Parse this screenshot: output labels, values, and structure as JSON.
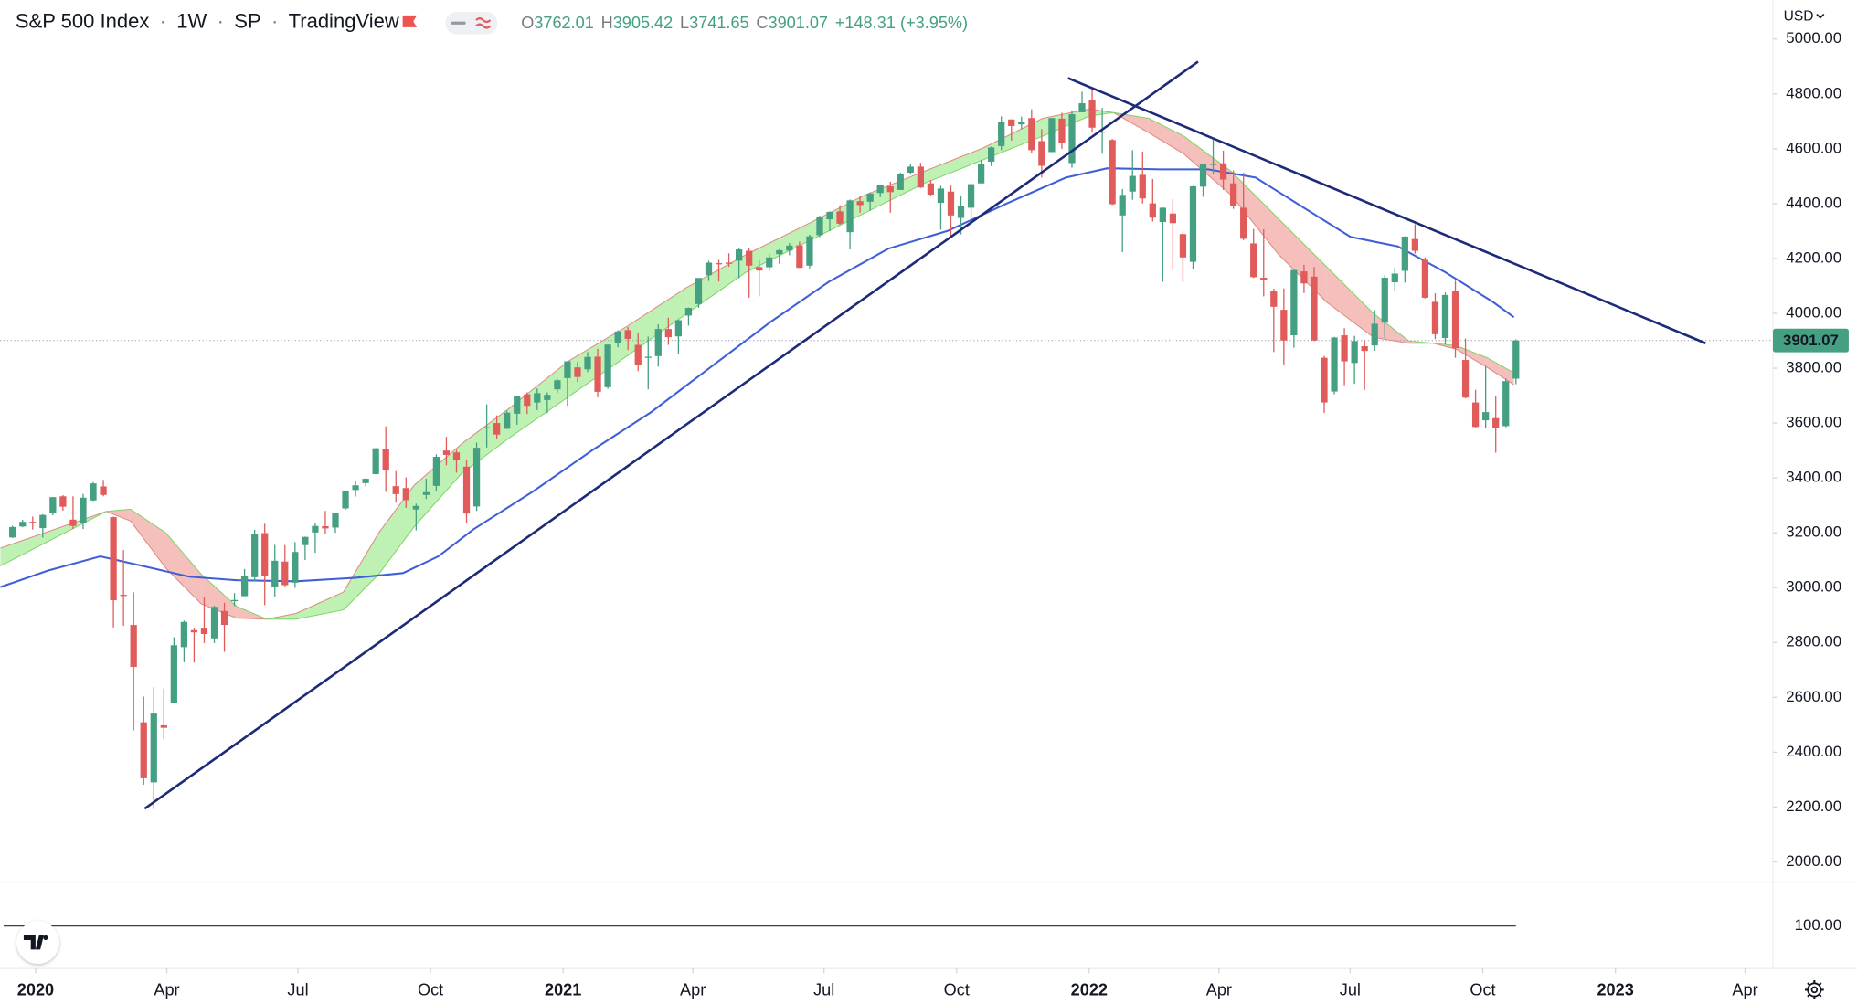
{
  "chart_data": {
    "type": "candlestick",
    "title": "S&P 500 Index",
    "interval": "1W",
    "exchange": "SP",
    "source": "TradingView",
    "separator": "·",
    "currency": "USD",
    "ohlc_labels": [
      "O",
      "H",
      "L",
      "C"
    ],
    "change": "+148.31",
    "change_pct": "(+3.95%)",
    "up_color": "#45a083",
    "down_color": "#e15b5b",
    "grid": false,
    "xlim": [
      -1.24,
      174.47
    ],
    "ylim": [
      1926.7,
      5142.4
    ],
    "yticks": [
      {
        "value": 2000,
        "label": "2000.00"
      },
      {
        "value": 2200,
        "label": "2200.00"
      },
      {
        "value": 2400,
        "label": "2400.00"
      },
      {
        "value": 2600,
        "label": "2600.00"
      },
      {
        "value": 2800,
        "label": "2800.00"
      },
      {
        "value": 3000,
        "label": "3000.00"
      },
      {
        "value": 3200,
        "label": "3200.00"
      },
      {
        "value": 3400,
        "label": "3400.00"
      },
      {
        "value": 3600,
        "label": "3600.00"
      },
      {
        "value": 3800,
        "label": "3800.00"
      },
      {
        "value": 4000,
        "label": "4000.00"
      },
      {
        "value": 4200,
        "label": "4200.00"
      },
      {
        "value": 4400,
        "label": "4400.00"
      },
      {
        "value": 4600,
        "label": "4600.00"
      },
      {
        "value": 4800,
        "label": "4800.00"
      },
      {
        "value": 5000,
        "label": "5000.00"
      }
    ],
    "xticks": [
      {
        "value": 2.29,
        "label": "2020"
      },
      {
        "value": 15.29,
        "label": "Apr"
      },
      {
        "value": 28.29,
        "label": "Jul"
      },
      {
        "value": 41.43,
        "label": "Oct"
      },
      {
        "value": 54.57,
        "label": "2021"
      },
      {
        "value": 67.43,
        "label": "Apr"
      },
      {
        "value": 80.43,
        "label": "Jul"
      },
      {
        "value": 93.57,
        "label": "Oct"
      },
      {
        "value": 106.71,
        "label": "2022"
      },
      {
        "value": 119.57,
        "label": "Apr"
      },
      {
        "value": 132.57,
        "label": "Jul"
      },
      {
        "value": 145.71,
        "label": "Oct"
      },
      {
        "value": 158.86,
        "label": "2023"
      },
      {
        "value": 171.71,
        "label": "Apr"
      }
    ],
    "ohlc": [
      [
        3183,
        3226,
        3181,
        3221
      ],
      [
        3223,
        3247,
        3220,
        3240
      ],
      [
        3240,
        3259,
        3212,
        3235
      ],
      [
        3217,
        3268,
        3182,
        3265
      ],
      [
        3271,
        3330,
        3264,
        3330
      ],
      [
        3333,
        3337,
        3281,
        3295
      ],
      [
        3248,
        3333,
        3214,
        3225
      ],
      [
        3235,
        3342,
        3214,
        3328
      ],
      [
        3318,
        3385,
        3316,
        3380
      ],
      [
        3369,
        3393,
        3333,
        3338
      ],
      [
        3257,
        3259,
        2855,
        2954
      ],
      [
        2974,
        3137,
        2861,
        2972
      ],
      [
        2864,
        2983,
        2479,
        2711
      ],
      [
        2509,
        2603,
        2281,
        2305
      ],
      [
        2290,
        2637,
        2192,
        2541
      ],
      [
        2498,
        2632,
        2447,
        2489
      ],
      [
        2579,
        2819,
        2579,
        2790
      ],
      [
        2783,
        2880,
        2728,
        2875
      ],
      [
        2845,
        2854,
        2727,
        2837
      ],
      [
        2854,
        2964,
        2798,
        2831
      ],
      [
        2815,
        2934,
        2798,
        2930
      ],
      [
        2915,
        2945,
        2766,
        2864
      ],
      [
        2953,
        2980,
        2933,
        2955
      ],
      [
        2969,
        3068,
        2969,
        3044
      ],
      [
        3038,
        3211,
        3025,
        3194
      ],
      [
        3199,
        3233,
        2936,
        3041
      ],
      [
        3001,
        3156,
        2966,
        3098
      ],
      [
        3095,
        3155,
        3005,
        3009
      ],
      [
        3018,
        3166,
        2999,
        3130
      ],
      [
        3155,
        3186,
        3101,
        3185
      ],
      [
        3201,
        3234,
        3127,
        3225
      ],
      [
        3224,
        3280,
        3196,
        3216
      ],
      [
        3219,
        3272,
        3200,
        3271
      ],
      [
        3289,
        3352,
        3284,
        3351
      ],
      [
        3356,
        3387,
        3332,
        3373
      ],
      [
        3381,
        3399,
        3369,
        3397
      ],
      [
        3414,
        3509,
        3413,
        3508
      ],
      [
        3507,
        3588,
        3349,
        3427
      ],
      [
        3370,
        3425,
        3310,
        3341
      ],
      [
        3363,
        3402,
        3291,
        3319
      ],
      [
        3285,
        3306,
        3209,
        3298
      ],
      [
        3338,
        3397,
        3323,
        3348
      ],
      [
        3371,
        3486,
        3354,
        3477
      ],
      [
        3500,
        3550,
        3446,
        3484
      ],
      [
        3493,
        3502,
        3419,
        3465
      ],
      [
        3441,
        3465,
        3234,
        3270
      ],
      [
        3296,
        3529,
        3280,
        3510
      ],
      [
        3584,
        3668,
        3511,
        3585
      ],
      [
        3600,
        3628,
        3543,
        3558
      ],
      [
        3579,
        3645,
        3579,
        3638
      ],
      [
        3634,
        3699,
        3594,
        3699
      ],
      [
        3705,
        3712,
        3633,
        3663
      ],
      [
        3675,
        3726,
        3647,
        3709
      ],
      [
        3684,
        3712,
        3636,
        3703
      ],
      [
        3723,
        3760,
        3711,
        3756
      ],
      [
        3764,
        3826,
        3663,
        3825
      ],
      [
        3803,
        3823,
        3750,
        3768
      ],
      [
        3796,
        3859,
        3786,
        3841
      ],
      [
        3842,
        3871,
        3694,
        3714
      ],
      [
        3731,
        3887,
        3725,
        3886
      ],
      [
        3892,
        3938,
        3876,
        3934
      ],
      [
        3939,
        3950,
        3866,
        3907
      ],
      [
        3885,
        3929,
        3789,
        3811
      ],
      [
        3842,
        3915,
        3723,
        3842
      ],
      [
        3844,
        3960,
        3806,
        3943
      ],
      [
        3943,
        3984,
        3885,
        3913
      ],
      [
        3916,
        3978,
        3853,
        3975
      ],
      [
        3992,
        4021,
        3955,
        4020
      ],
      [
        4034,
        4129,
        4020,
        4129
      ],
      [
        4139,
        4192,
        4118,
        4185
      ],
      [
        4183,
        4195,
        4116,
        4180
      ],
      [
        4185,
        4219,
        4170,
        4181
      ],
      [
        4192,
        4238,
        4128,
        4233
      ],
      [
        4228,
        4238,
        4057,
        4174
      ],
      [
        4169,
        4194,
        4062,
        4156
      ],
      [
        4168,
        4216,
        4155,
        4204
      ],
      [
        4216,
        4234,
        4181,
        4230
      ],
      [
        4229,
        4256,
        4212,
        4247
      ],
      [
        4248,
        4262,
        4165,
        4166
      ],
      [
        4174,
        4287,
        4164,
        4281
      ],
      [
        4285,
        4356,
        4278,
        4352
      ],
      [
        4343,
        4372,
        4300,
        4370
      ],
      [
        4372,
        4394,
        4322,
        4327
      ],
      [
        4296,
        4415,
        4233,
        4412
      ],
      [
        4409,
        4429,
        4367,
        4395
      ],
      [
        4407,
        4441,
        4374,
        4437
      ],
      [
        4439,
        4470,
        4424,
        4468
      ],
      [
        4463,
        4480,
        4367,
        4442
      ],
      [
        4450,
        4513,
        4450,
        4509
      ],
      [
        4513,
        4546,
        4506,
        4535
      ],
      [
        4535,
        4549,
        4457,
        4459
      ],
      [
        4474,
        4486,
        4427,
        4433
      ],
      [
        4403,
        4465,
        4305,
        4455
      ],
      [
        4444,
        4466,
        4278,
        4357
      ],
      [
        4348,
        4430,
        4288,
        4391
      ],
      [
        4385,
        4475,
        4329,
        4471
      ],
      [
        4474,
        4559,
        4474,
        4545
      ],
      [
        4553,
        4608,
        4537,
        4605
      ],
      [
        4610,
        4718,
        4595,
        4697
      ],
      [
        4707,
        4707,
        4630,
        4683
      ],
      [
        4689,
        4717,
        4672,
        4698
      ],
      [
        4712,
        4744,
        4585,
        4595
      ],
      [
        4628,
        4672,
        4495,
        4538
      ],
      [
        4588,
        4713,
        4588,
        4712
      ],
      [
        4710,
        4731,
        4600,
        4620
      ],
      [
        4548,
        4740,
        4531,
        4726
      ],
      [
        4733,
        4808,
        4733,
        4766
      ],
      [
        4778,
        4819,
        4662,
        4677
      ],
      [
        4662,
        4749,
        4582,
        4663
      ],
      [
        4632,
        4636,
        4395,
        4398
      ],
      [
        4357,
        4453,
        4223,
        4432
      ],
      [
        4444,
        4595,
        4414,
        4501
      ],
      [
        4505,
        4590,
        4401,
        4419
      ],
      [
        4401,
        4490,
        4335,
        4349
      ],
      [
        4333,
        4386,
        4115,
        4385
      ],
      [
        4364,
        4417,
        4161,
        4329
      ],
      [
        4289,
        4299,
        4114,
        4204
      ],
      [
        4188,
        4465,
        4162,
        4463
      ],
      [
        4462,
        4546,
        4425,
        4543
      ],
      [
        4541,
        4637,
        4507,
        4546
      ],
      [
        4547,
        4593,
        4450,
        4488
      ],
      [
        4474,
        4521,
        4381,
        4392
      ],
      [
        4385,
        4513,
        4267,
        4272
      ],
      [
        4255,
        4308,
        4129,
        4132
      ],
      [
        4130,
        4307,
        4062,
        4123
      ],
      [
        4082,
        4090,
        3859,
        4024
      ],
      [
        4013,
        4091,
        3811,
        3901
      ],
      [
        3920,
        4158,
        3875,
        4158
      ],
      [
        4153,
        4177,
        4074,
        4109
      ],
      [
        4134,
        4169,
        3899,
        3901
      ],
      [
        3838,
        3845,
        3637,
        3675
      ],
      [
        3715,
        3914,
        3705,
        3912
      ],
      [
        3920,
        3946,
        3738,
        3825
      ],
      [
        3819,
        3918,
        3743,
        3899
      ],
      [
        3880,
        3902,
        3721,
        3863
      ],
      [
        3883,
        4012,
        3863,
        3962
      ],
      [
        3966,
        4140,
        3910,
        4130
      ],
      [
        4113,
        4167,
        4080,
        4145
      ],
      [
        4155,
        4281,
        4112,
        4280
      ],
      [
        4271,
        4325,
        4218,
        4228
      ],
      [
        4195,
        4204,
        4054,
        4057
      ],
      [
        4042,
        4073,
        3906,
        3924
      ],
      [
        3910,
        4076,
        3887,
        4067
      ],
      [
        4083,
        4119,
        3838,
        3873
      ],
      [
        3830,
        3908,
        3690,
        3693
      ],
      [
        3675,
        3721,
        3584,
        3586
      ],
      [
        3610,
        3807,
        3580,
        3640
      ],
      [
        3618,
        3697,
        3492,
        3583
      ],
      [
        3589,
        3762,
        3585,
        3753
      ],
      [
        3762.01,
        3905.42,
        3741.65,
        3901.07
      ]
    ],
    "moving_average": {
      "color": "#3f5fd6",
      "x": [
        -1.2,
        3.5,
        8.7,
        12.9,
        17.5,
        22.2,
        28.1,
        34.0,
        38.7,
        42.2,
        45.7,
        51.6,
        57.5,
        63.3,
        69.2,
        75.1,
        80.9,
        86.8,
        92.7,
        98.5,
        104.4,
        108.5,
        113.8,
        118.5,
        123.2,
        127.9,
        132.6,
        137.3,
        142.0,
        146.7,
        148.8
      ],
      "values": [
        3002,
        3062,
        3114,
        3079,
        3040,
        3027,
        3023,
        3036,
        3053,
        3114,
        3213,
        3351,
        3502,
        3640,
        3804,
        3968,
        4115,
        4236,
        4301,
        4400,
        4495,
        4529,
        4525,
        4525,
        4495,
        4387,
        4279,
        4244,
        4150,
        4042,
        3986
      ]
    },
    "ribbon": {
      "up_color": "#a8ec9a",
      "down_color": "#f2aaa4",
      "up_line": "#7fd46c",
      "down_line": "#e08a84",
      "x": [
        -1.2,
        9.3,
        11.7,
        15.2,
        18.7,
        22.2,
        25.2,
        28.1,
        32.8,
        36.3,
        39.8,
        44.5,
        49.2,
        55.1,
        61.0,
        66.8,
        72.7,
        78.6,
        84.4,
        90.3,
        96.2,
        102.1,
        106.7,
        109.1,
        112.6,
        116.1,
        120.8,
        125.5,
        130.2,
        134.9,
        138.4,
        140.8,
        143.1,
        146.1,
        148.8
      ],
      "fast": [
        3144,
        3278,
        3243,
        3071,
        2941,
        2889,
        2885,
        2906,
        2984,
        3200,
        3373,
        3524,
        3653,
        3826,
        3955,
        4094,
        4214,
        4322,
        4430,
        4517,
        4603,
        4711,
        4745,
        4732,
        4659,
        4581,
        4430,
        4214,
        4042,
        3912,
        3891,
        3891,
        3869,
        3804,
        3740
      ],
      "slow": [
        3079,
        3278,
        3286,
        3200,
        3049,
        2932,
        2885,
        2885,
        2919,
        3049,
        3222,
        3416,
        3545,
        3696,
        3847,
        3999,
        4150,
        4258,
        4365,
        4473,
        4560,
        4646,
        4719,
        4732,
        4711,
        4646,
        4517,
        4344,
        4171,
        3999,
        3899,
        3891,
        3882,
        3839,
        3783
      ]
    },
    "trendlines": {
      "color": "#1c2a78",
      "lines": [
        {
          "x": [
            13.1,
            117.5
          ],
          "values": [
            2194,
            4918
          ]
        },
        {
          "x": [
            104.6,
            167.8
          ],
          "values": [
            4858,
            3891
          ]
        }
      ]
    },
    "lower_pane": {
      "yticks": [
        {
          "value": 100,
          "label": "100.00"
        }
      ],
      "color": "#3a3f55"
    }
  }
}
